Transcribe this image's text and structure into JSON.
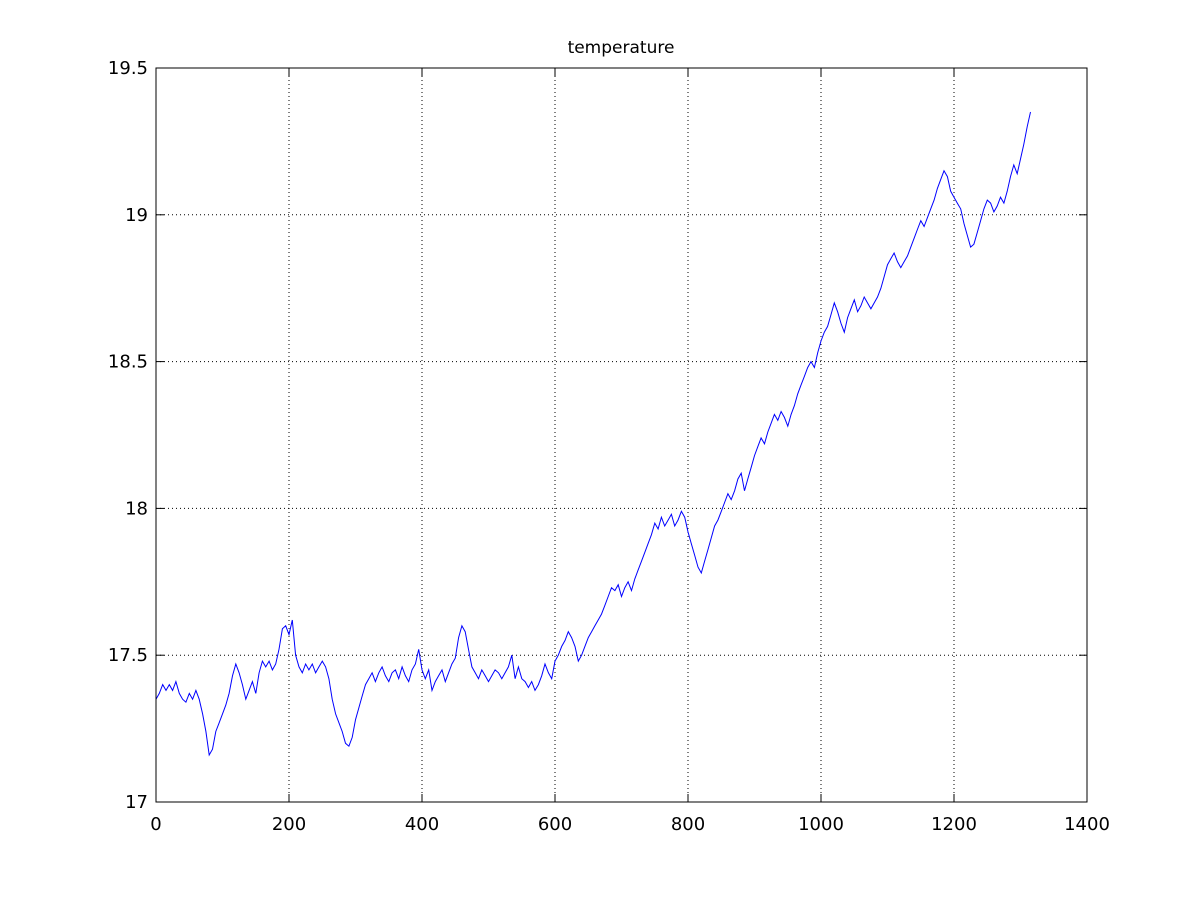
{
  "chart_data": {
    "type": "line",
    "title": "temperature",
    "xlabel": "",
    "ylabel": "",
    "xlim": [
      0,
      1400
    ],
    "ylim": [
      17,
      19.5
    ],
    "x_ticks": [
      0,
      200,
      400,
      600,
      800,
      1000,
      1200,
      1400
    ],
    "x_tick_labels": [
      "0",
      "200",
      "400",
      "600",
      "800",
      "1000",
      "1200",
      "1400"
    ],
    "y_ticks": [
      17,
      17.5,
      18,
      18.5,
      19,
      19.5
    ],
    "y_tick_labels": [
      "17",
      "17.5",
      "18",
      "18.5",
      "19",
      "19.5"
    ],
    "grid": true,
    "grid_style": "dotted",
    "legend": "none",
    "series": [
      {
        "color": "#0000ff",
        "x": [
          0,
          5,
          10,
          15,
          20,
          25,
          30,
          35,
          40,
          45,
          50,
          55,
          60,
          65,
          70,
          75,
          80,
          85,
          90,
          95,
          100,
          105,
          110,
          115,
          120,
          125,
          130,
          135,
          140,
          145,
          150,
          155,
          160,
          165,
          170,
          175,
          180,
          185,
          190,
          195,
          200,
          205,
          210,
          215,
          220,
          225,
          230,
          235,
          240,
          245,
          250,
          255,
          260,
          265,
          270,
          275,
          280,
          285,
          290,
          295,
          300,
          305,
          310,
          315,
          320,
          325,
          330,
          335,
          340,
          345,
          350,
          355,
          360,
          365,
          370,
          375,
          380,
          385,
          390,
          395,
          400,
          405,
          410,
          415,
          420,
          425,
          430,
          435,
          440,
          445,
          450,
          455,
          460,
          465,
          470,
          475,
          480,
          485,
          490,
          495,
          500,
          505,
          510,
          515,
          520,
          525,
          530,
          535,
          540,
          545,
          550,
          555,
          560,
          565,
          570,
          575,
          580,
          585,
          590,
          595,
          600,
          605,
          610,
          615,
          620,
          625,
          630,
          635,
          640,
          645,
          650,
          655,
          660,
          665,
          670,
          675,
          680,
          685,
          690,
          695,
          700,
          705,
          710,
          715,
          720,
          725,
          730,
          735,
          740,
          745,
          750,
          755,
          760,
          765,
          770,
          775,
          780,
          785,
          790,
          795,
          800,
          805,
          810,
          815,
          820,
          825,
          830,
          835,
          840,
          845,
          850,
          855,
          860,
          865,
          870,
          875,
          880,
          885,
          890,
          895,
          900,
          905,
          910,
          915,
          920,
          925,
          930,
          935,
          940,
          945,
          950,
          955,
          960,
          965,
          970,
          975,
          980,
          985,
          990,
          995,
          1000,
          1005,
          1010,
          1015,
          1020,
          1025,
          1030,
          1035,
          1040,
          1045,
          1050,
          1055,
          1060,
          1065,
          1070,
          1075,
          1080,
          1085,
          1090,
          1095,
          1100,
          1105,
          1110,
          1115,
          1120,
          1125,
          1130,
          1135,
          1140,
          1145,
          1150,
          1155,
          1160,
          1165,
          1170,
          1175,
          1180,
          1185,
          1190,
          1195,
          1200,
          1205,
          1210,
          1215,
          1220,
          1225,
          1230,
          1235,
          1240,
          1245,
          1250,
          1255,
          1260,
          1265,
          1270,
          1275,
          1280,
          1285,
          1290,
          1295,
          1300,
          1305,
          1310,
          1315
        ],
        "y": [
          17.35,
          17.37,
          17.4,
          17.38,
          17.4,
          17.38,
          17.41,
          17.37,
          17.35,
          17.34,
          17.37,
          17.35,
          17.38,
          17.35,
          17.3,
          17.24,
          17.16,
          17.18,
          17.24,
          17.27,
          17.3,
          17.33,
          17.37,
          17.43,
          17.47,
          17.44,
          17.4,
          17.35,
          17.38,
          17.41,
          17.37,
          17.44,
          17.48,
          17.46,
          17.48,
          17.45,
          17.47,
          17.52,
          17.59,
          17.6,
          17.57,
          17.62,
          17.5,
          17.46,
          17.44,
          17.47,
          17.45,
          17.47,
          17.44,
          17.46,
          17.48,
          17.46,
          17.42,
          17.35,
          17.3,
          17.27,
          17.24,
          17.2,
          17.19,
          17.22,
          17.28,
          17.32,
          17.36,
          17.4,
          17.42,
          17.44,
          17.41,
          17.44,
          17.46,
          17.43,
          17.41,
          17.44,
          17.45,
          17.42,
          17.46,
          17.43,
          17.41,
          17.45,
          17.47,
          17.52,
          17.45,
          17.42,
          17.45,
          17.38,
          17.41,
          17.43,
          17.45,
          17.41,
          17.44,
          17.47,
          17.49,
          17.56,
          17.6,
          17.58,
          17.52,
          17.46,
          17.44,
          17.42,
          17.45,
          17.43,
          17.41,
          17.43,
          17.45,
          17.44,
          17.42,
          17.44,
          17.46,
          17.5,
          17.42,
          17.46,
          17.42,
          17.41,
          17.39,
          17.41,
          17.38,
          17.4,
          17.43,
          17.47,
          17.44,
          17.42,
          17.48,
          17.5,
          17.53,
          17.55,
          17.58,
          17.56,
          17.53,
          17.48,
          17.5,
          17.53,
          17.56,
          17.58,
          17.6,
          17.62,
          17.64,
          17.67,
          17.7,
          17.73,
          17.72,
          17.74,
          17.7,
          17.73,
          17.75,
          17.72,
          17.76,
          17.79,
          17.82,
          17.85,
          17.88,
          17.91,
          17.95,
          17.93,
          17.97,
          17.94,
          17.96,
          17.98,
          17.94,
          17.96,
          17.99,
          17.97,
          17.92,
          17.88,
          17.84,
          17.8,
          17.78,
          17.82,
          17.86,
          17.9,
          17.94,
          17.96,
          17.99,
          18.02,
          18.05,
          18.03,
          18.06,
          18.1,
          18.12,
          18.06,
          18.1,
          18.14,
          18.18,
          18.21,
          18.24,
          18.22,
          18.26,
          18.29,
          18.32,
          18.3,
          18.33,
          18.31,
          18.28,
          18.32,
          18.35,
          18.39,
          18.42,
          18.45,
          18.48,
          18.5,
          18.48,
          18.53,
          18.57,
          18.6,
          18.62,
          18.66,
          18.7,
          18.67,
          18.63,
          18.6,
          18.65,
          18.68,
          18.71,
          18.67,
          18.69,
          18.72,
          18.7,
          18.68,
          18.7,
          18.72,
          18.75,
          18.79,
          18.83,
          18.85,
          18.87,
          18.84,
          18.82,
          18.84,
          18.86,
          18.89,
          18.92,
          18.95,
          18.98,
          18.96,
          18.99,
          19.02,
          19.05,
          19.09,
          19.12,
          19.15,
          19.13,
          19.08,
          19.06,
          19.04,
          19.02,
          18.97,
          18.93,
          18.89,
          18.9,
          18.94,
          18.98,
          19.02,
          19.05,
          19.04,
          19.01,
          19.03,
          19.06,
          19.04,
          19.08,
          19.13,
          19.17,
          19.14,
          19.19,
          19.24,
          19.3,
          19.35
        ]
      }
    ]
  }
}
